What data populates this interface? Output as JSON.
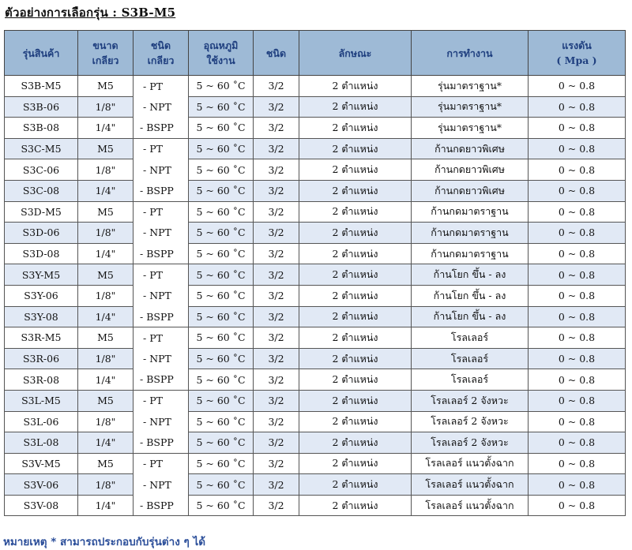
{
  "title": "ตัวอย่างการเลือกรุ่น : S3B-M5",
  "table": {
    "headers": [
      {
        "line1": "รุ่นสินค้า",
        "line2": ""
      },
      {
        "line1": "ขนาด",
        "line2": "เกลียว"
      },
      {
        "line1": "ชนิด",
        "line2": "เกลียว"
      },
      {
        "line1": "อุณหภูมิ",
        "line2": "ใช้งาน"
      },
      {
        "line1": "ชนิด",
        "line2": ""
      },
      {
        "line1": "ลักษณะ",
        "line2": ""
      },
      {
        "line1": "การทำงาน",
        "line2": ""
      },
      {
        "line1": "แรงดัน",
        "line2": "( Mpa )"
      }
    ],
    "rows": [
      [
        "S3B-M5",
        "M5",
        "- PT",
        "5 ~ 60 ˚C",
        "3/2",
        "2 ตำแหน่ง",
        "รุ่นมาตราฐาน*",
        "0 ~ 0.8"
      ],
      [
        "S3B-06",
        "1/8\"",
        "- NPT",
        "5 ~ 60 ˚C",
        "3/2",
        "2 ตำแหน่ง",
        "รุ่นมาตราฐาน*",
        "0 ~ 0.8"
      ],
      [
        "S3B-08",
        "1/4\"",
        "- BSPP",
        "5 ~ 60 ˚C",
        "3/2",
        "2 ตำแหน่ง",
        "รุ่นมาตราฐาน*",
        "0 ~ 0.8"
      ],
      [
        "S3C-M5",
        "M5",
        "- PT",
        "5 ~ 60 ˚C",
        "3/2",
        "2 ตำแหน่ง",
        "ก้านกดยาวพิเศษ",
        "0 ~ 0.8"
      ],
      [
        "S3C-06",
        "1/8\"",
        "- NPT",
        "5 ~ 60 ˚C",
        "3/2",
        "2 ตำแหน่ง",
        "ก้านกดยาวพิเศษ",
        "0 ~ 0.8"
      ],
      [
        "S3C-08",
        "1/4\"",
        "- BSPP",
        "5 ~ 60 ˚C",
        "3/2",
        "2 ตำแหน่ง",
        "ก้านกดยาวพิเศษ",
        "0 ~ 0.8"
      ],
      [
        "S3D-M5",
        "M5",
        "- PT",
        "5 ~ 60 ˚C",
        "3/2",
        "2 ตำแหน่ง",
        "ก้านกดมาตราฐาน",
        "0 ~ 0.8"
      ],
      [
        "S3D-06",
        "1/8\"",
        "- NPT",
        "5 ~ 60 ˚C",
        "3/2",
        "2 ตำแหน่ง",
        "ก้านกดมาตราฐาน",
        "0 ~ 0.8"
      ],
      [
        "S3D-08",
        "1/4\"",
        "- BSPP",
        "5 ~ 60 ˚C",
        "3/2",
        "2 ตำแหน่ง",
        "ก้านกดมาตราฐาน",
        "0 ~ 0.8"
      ],
      [
        "S3Y-M5",
        "M5",
        "- PT",
        "5 ~ 60 ˚C",
        "3/2",
        "2 ตำแหน่ง",
        "ก้านโยก ขึ้น - ลง",
        "0 ~ 0.8"
      ],
      [
        "S3Y-06",
        "1/8\"",
        "- NPT",
        "5 ~ 60 ˚C",
        "3/2",
        "2 ตำแหน่ง",
        "ก้านโยก ขึ้น - ลง",
        "0 ~ 0.8"
      ],
      [
        "S3Y-08",
        "1/4\"",
        "- BSPP",
        "5 ~ 60 ˚C",
        "3/2",
        "2 ตำแหน่ง",
        "ก้านโยก ขึ้น - ลง",
        "0 ~ 0.8"
      ],
      [
        "S3R-M5",
        "M5",
        "- PT",
        "5 ~ 60 ˚C",
        "3/2",
        "2 ตำแหน่ง",
        "โรลเลอร์",
        "0 ~ 0.8"
      ],
      [
        "S3R-06",
        "1/8\"",
        "- NPT",
        "5 ~ 60 ˚C",
        "3/2",
        "2 ตำแหน่ง",
        "โรลเลอร์",
        "0 ~ 0.8"
      ],
      [
        "S3R-08",
        "1/4\"",
        "- BSPP",
        "5 ~ 60 ˚C",
        "3/2",
        "2 ตำแหน่ง",
        "โรลเลอร์",
        "0 ~ 0.8"
      ],
      [
        "S3L-M5",
        "M5",
        "- PT",
        "5 ~ 60 ˚C",
        "3/2",
        "2 ตำแหน่ง",
        "โรลเลอร์ 2 จังหวะ",
        "0 ~ 0.8"
      ],
      [
        "S3L-06",
        "1/8\"",
        "- NPT",
        "5 ~ 60 ˚C",
        "3/2",
        "2 ตำแหน่ง",
        "โรลเลอร์ 2 จังหวะ",
        "0 ~ 0.8"
      ],
      [
        "S3L-08",
        "1/4\"",
        "- BSPP",
        "5 ~ 60 ˚C",
        "3/2",
        "2 ตำแหน่ง",
        "โรลเลอร์ 2 จังหวะ",
        "0 ~ 0.8"
      ],
      [
        "S3V-M5",
        "M5",
        "- PT",
        "5 ~ 60 ˚C",
        "3/2",
        "2 ตำแหน่ง",
        "โรลเลอร์ แนวตั้งฉาก",
        "0 ~ 0.8"
      ],
      [
        "S3V-06",
        "1/8\"",
        "- NPT",
        "5 ~ 60 ˚C",
        "3/2",
        "2 ตำแหน่ง",
        "โรลเลอร์ แนวตั้งฉาก",
        "0 ~ 0.8"
      ],
      [
        "S3V-08",
        "1/4\"",
        "- BSPP",
        "5 ~ 60 ˚C",
        "3/2",
        "2 ตำแหน่ง",
        "โรลเลอร์ แนวตั้งฉาก",
        "0 ~ 0.8"
      ]
    ]
  },
  "note": "หมายเหตุ * สามารถประกอบกับรุ่นต่าง ๆ ได้",
  "colors": {
    "header_bg": "#9ebad6",
    "header_text": "#1f3f7f",
    "stripe_bg": "#e1e9f5",
    "note_text": "#2c4f9a"
  }
}
